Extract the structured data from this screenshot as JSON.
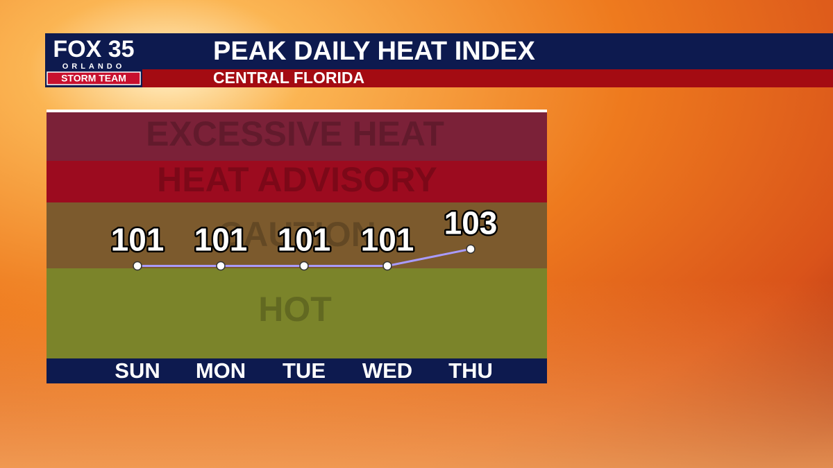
{
  "branding": {
    "station": "FOX 35",
    "city": "ORLANDO",
    "team": "STORM TEAM"
  },
  "chart_data": {
    "type": "line",
    "title": "PEAK DAILY HEAT INDEX",
    "subtitle": "CENTRAL FLORIDA",
    "zones": [
      "EXCESSIVE HEAT",
      "HEAT ADVISORY",
      "CAUTION",
      "HOT"
    ],
    "categories": [
      "SUN",
      "MON",
      "TUE",
      "WED",
      "THU"
    ],
    "values": [
      101,
      101,
      101,
      101,
      103
    ],
    "color": "#a99bff",
    "ylim": [
      90,
      119
    ]
  }
}
